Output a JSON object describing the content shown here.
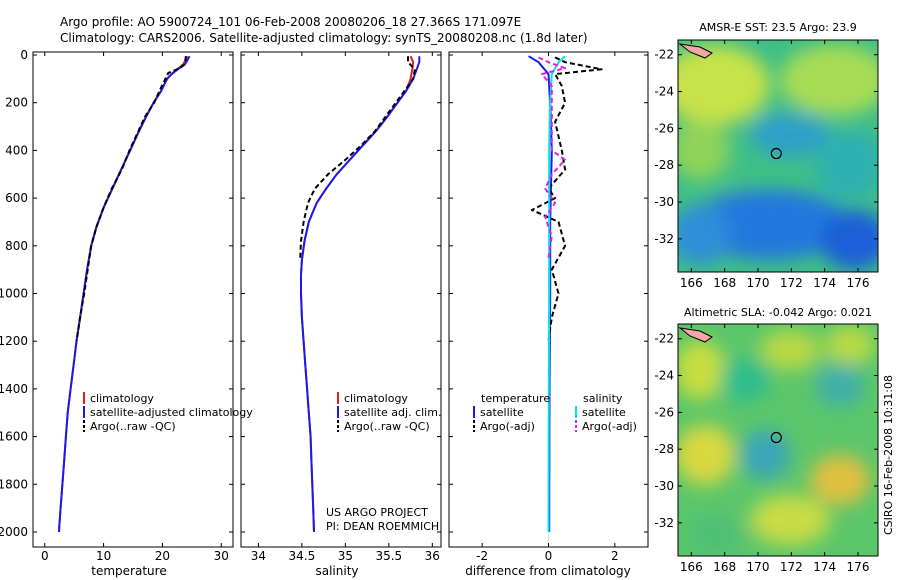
{
  "header": {
    "line1": "Argo profile: AO 5900724_101 06-Feb-2008 20080206_18 27.366S 171.097E",
    "line2": "Climatology: CARS2006. Satellite-adjusted climatology: synTS_20080208.nc (1.8d later)"
  },
  "footer": {
    "project": "US ARGO PROJECT",
    "pi": "PI: DEAN ROEMMICH",
    "stamp": "CSIRO 16-Feb-2008 10:31:08"
  },
  "chart_data": [
    {
      "type": "line",
      "name": "temperature",
      "xlabel": "temperature",
      "ylabel": "",
      "xlim": [
        -2,
        32
      ],
      "ylim": [
        2050,
        0
      ],
      "xticks": [
        0,
        10,
        20,
        30
      ],
      "yticks": [
        0,
        200,
        400,
        600,
        800,
        1000,
        1200,
        1400,
        1600,
        1800,
        2000
      ],
      "legend": [
        "climatology",
        "satellite-adjusted climatology",
        "Argo(..raw -QC)"
      ],
      "legend_placement": "lower-middle",
      "series": [
        {
          "name": "climatology",
          "color": "#e02020",
          "points": [
            [
              24.2,
              5
            ],
            [
              24.0,
              20
            ],
            [
              23.5,
              40
            ],
            [
              22.5,
              60
            ],
            [
              21.5,
              80
            ],
            [
              20.8,
              100
            ],
            [
              19.8,
              150
            ],
            [
              18.5,
              200
            ],
            [
              17.2,
              260
            ],
            [
              16.0,
              320
            ],
            [
              14.5,
              400
            ],
            [
              13.0,
              480
            ],
            [
              11.5,
              560
            ],
            [
              10.0,
              640
            ],
            [
              8.8,
              720
            ],
            [
              7.9,
              800
            ],
            [
              7.2,
              900
            ],
            [
              6.6,
              1000
            ],
            [
              6.0,
              1100
            ],
            [
              5.4,
              1200
            ],
            [
              4.9,
              1300
            ],
            [
              4.4,
              1400
            ],
            [
              3.9,
              1500
            ],
            [
              3.6,
              1600
            ],
            [
              3.3,
              1700
            ],
            [
              3.0,
              1800
            ],
            [
              2.7,
              1900
            ],
            [
              2.4,
              2000
            ]
          ]
        },
        {
          "name": "satellite-adjusted climatology",
          "color": "#1a1aee",
          "points": [
            [
              24.6,
              5
            ],
            [
              24.3,
              20
            ],
            [
              23.8,
              40
            ],
            [
              22.6,
              60
            ],
            [
              21.6,
              80
            ],
            [
              20.8,
              100
            ],
            [
              19.8,
              150
            ],
            [
              18.5,
              200
            ],
            [
              17.2,
              260
            ],
            [
              16.0,
              320
            ],
            [
              14.5,
              400
            ],
            [
              13.0,
              480
            ],
            [
              11.5,
              560
            ],
            [
              10.0,
              640
            ],
            [
              8.8,
              720
            ],
            [
              7.9,
              800
            ],
            [
              7.2,
              900
            ],
            [
              6.6,
              1000
            ],
            [
              6.0,
              1100
            ],
            [
              5.4,
              1200
            ],
            [
              4.9,
              1300
            ],
            [
              4.4,
              1400
            ],
            [
              3.9,
              1500
            ],
            [
              3.6,
              1600
            ],
            [
              3.3,
              1700
            ],
            [
              3.0,
              1800
            ],
            [
              2.7,
              1900
            ],
            [
              2.4,
              2000
            ]
          ]
        },
        {
          "name": "Argo(..raw -QC)",
          "color": "#000000",
          "dash": true,
          "points": [
            [
              24.0,
              5
            ],
            [
              23.9,
              20
            ],
            [
              23.7,
              40
            ],
            [
              23.0,
              55
            ],
            [
              21.0,
              75
            ],
            [
              20.5,
              100
            ],
            [
              19.5,
              150
            ],
            [
              18.6,
              200
            ],
            [
              17.0,
              260
            ],
            [
              15.9,
              320
            ],
            [
              14.4,
              400
            ],
            [
              13.1,
              480
            ],
            [
              11.4,
              560
            ],
            [
              10.0,
              640
            ],
            [
              8.8,
              720
            ],
            [
              7.9,
              800
            ],
            [
              7.3,
              900
            ],
            [
              6.7,
              1000
            ],
            [
              6.0,
              1100
            ],
            [
              5.4,
              1200
            ]
          ]
        }
      ]
    },
    {
      "type": "line",
      "name": "salinity",
      "xlabel": "salinity",
      "ylabel": "",
      "xlim": [
        33.8,
        36.1
      ],
      "ylim": [
        2050,
        0
      ],
      "xticks": [
        34,
        34.5,
        35,
        35.5,
        36
      ],
      "legend": [
        "climatology",
        "satellite adj. clim.",
        "Argo(..raw -QC)"
      ],
      "legend_placement": "lower-middle",
      "series": [
        {
          "name": "climatology",
          "color": "#e02020",
          "points": [
            [
              35.75,
              5
            ],
            [
              35.78,
              30
            ],
            [
              35.77,
              60
            ],
            [
              35.75,
              100
            ],
            [
              35.7,
              150
            ],
            [
              35.6,
              200
            ],
            [
              35.48,
              260
            ],
            [
              35.35,
              320
            ],
            [
              35.2,
              380
            ],
            [
              35.05,
              440
            ],
            [
              34.9,
              500
            ],
            [
              34.78,
              560
            ],
            [
              34.67,
              620
            ],
            [
              34.58,
              700
            ],
            [
              34.53,
              780
            ],
            [
              34.5,
              860
            ],
            [
              34.49,
              920
            ],
            [
              34.49,
              1000
            ],
            [
              34.5,
              1100
            ],
            [
              34.52,
              1200
            ],
            [
              34.54,
              1300
            ],
            [
              34.56,
              1400
            ],
            [
              34.58,
              1500
            ],
            [
              34.6,
              1600
            ],
            [
              34.61,
              1700
            ],
            [
              34.62,
              1800
            ],
            [
              34.63,
              1900
            ],
            [
              34.64,
              2000
            ]
          ]
        },
        {
          "name": "satellite adj. clim.",
          "color": "#1a1aee",
          "points": [
            [
              35.85,
              5
            ],
            [
              35.85,
              30
            ],
            [
              35.82,
              60
            ],
            [
              35.78,
              100
            ],
            [
              35.7,
              150
            ],
            [
              35.6,
              200
            ],
            [
              35.48,
              260
            ],
            [
              35.35,
              320
            ],
            [
              35.2,
              380
            ],
            [
              35.05,
              440
            ],
            [
              34.9,
              500
            ],
            [
              34.78,
              560
            ],
            [
              34.67,
              620
            ],
            [
              34.58,
              700
            ],
            [
              34.53,
              780
            ],
            [
              34.5,
              860
            ],
            [
              34.49,
              920
            ],
            [
              34.49,
              1000
            ],
            [
              34.5,
              1100
            ],
            [
              34.52,
              1200
            ],
            [
              34.54,
              1300
            ],
            [
              34.56,
              1400
            ],
            [
              34.58,
              1500
            ],
            [
              34.6,
              1600
            ],
            [
              34.61,
              1700
            ],
            [
              34.62,
              1800
            ],
            [
              34.63,
              1900
            ],
            [
              34.64,
              2000
            ]
          ]
        },
        {
          "name": "Argo(..raw -QC)",
          "color": "#000000",
          "dash": true,
          "points": [
            [
              35.72,
              5
            ],
            [
              35.72,
              30
            ],
            [
              35.8,
              60
            ],
            [
              35.78,
              100
            ],
            [
              35.68,
              150
            ],
            [
              35.58,
              200
            ],
            [
              35.46,
              260
            ],
            [
              35.34,
              320
            ],
            [
              35.18,
              380
            ],
            [
              35.0,
              440
            ],
            [
              34.8,
              500
            ],
            [
              34.65,
              560
            ],
            [
              34.57,
              620
            ],
            [
              34.52,
              700
            ],
            [
              34.49,
              780
            ],
            [
              34.48,
              860
            ]
          ]
        }
      ]
    },
    {
      "type": "line",
      "name": "difference",
      "xlabel": "difference from climatology",
      "ylabel": "",
      "xlim": [
        -3,
        3
      ],
      "ylim": [
        2050,
        0
      ],
      "xticks": [
        -2,
        0,
        2
      ],
      "legend": [
        "temperature",
        "satellite",
        "Argo(-adj)",
        "salinity",
        "satellite",
        "Argo(-adj)"
      ],
      "legend_placement": "lower-middle",
      "series": [
        {
          "name": "temperature satellite",
          "color": "#1a1aee",
          "points": [
            [
              -0.6,
              5
            ],
            [
              -0.3,
              30
            ],
            [
              0.0,
              80
            ],
            [
              0.05,
              200
            ],
            [
              0.1,
              400
            ],
            [
              0.05,
              700
            ],
            [
              0.05,
              1000
            ],
            [
              0.03,
              1400
            ],
            [
              0.02,
              2000
            ]
          ]
        },
        {
          "name": "temperature Argo(-adj)",
          "color": "#000000",
          "dash": true,
          "points": [
            [
              0.2,
              10
            ],
            [
              0.5,
              30
            ],
            [
              1.6,
              60
            ],
            [
              0.2,
              80
            ],
            [
              0.4,
              130
            ],
            [
              0.5,
              200
            ],
            [
              0.2,
              280
            ],
            [
              0.4,
              400
            ],
            [
              0.5,
              480
            ],
            [
              0.0,
              560
            ],
            [
              0.2,
              600
            ],
            [
              -0.5,
              650
            ],
            [
              0.3,
              700
            ],
            [
              0.5,
              800
            ],
            [
              0.1,
              900
            ],
            [
              0.3,
              1000
            ],
            [
              0.1,
              1100
            ],
            [
              0.0,
              1200
            ]
          ]
        },
        {
          "name": "salinity satellite",
          "color": "#00e5e5",
          "points": [
            [
              0.5,
              5
            ],
            [
              0.3,
              30
            ],
            [
              0.1,
              80
            ],
            [
              0.05,
              200
            ],
            [
              0.02,
              400
            ],
            [
              0.02,
              1000
            ],
            [
              0.01,
              1400
            ],
            [
              0.0,
              2000
            ]
          ]
        },
        {
          "name": "salinity Argo(-adj)",
          "color": "#e020e0",
          "dash": true,
          "points": [
            [
              -0.3,
              10
            ],
            [
              0.0,
              30
            ],
            [
              0.5,
              55
            ],
            [
              -0.2,
              80
            ],
            [
              0.1,
              130
            ],
            [
              0.1,
              200
            ],
            [
              0.1,
              300
            ],
            [
              0.1,
              400
            ],
            [
              0.5,
              440
            ],
            [
              0.1,
              500
            ],
            [
              -0.1,
              560
            ],
            [
              0.2,
              620
            ],
            [
              -0.1,
              680
            ],
            [
              0.1,
              760
            ],
            [
              0.0,
              850
            ]
          ]
        }
      ]
    },
    {
      "type": "heatmap",
      "name": "sst-map",
      "title": "AMSR-E SST: 23.5 Argo: 23.9",
      "xlim": [
        165.2,
        177.2
      ],
      "ylim": [
        -33.8,
        -21.2
      ],
      "xticks": [
        166,
        168,
        170,
        172,
        174,
        176
      ],
      "yticks": [
        -22,
        -24,
        -26,
        -28,
        -30,
        -32
      ],
      "float_position": [
        171.097,
        -27.366
      ]
    },
    {
      "type": "heatmap",
      "name": "sla-map",
      "title": "Altimetric SLA: -0.042 Argo: 0.021",
      "xlim": [
        165.2,
        177.2
      ],
      "ylim": [
        -33.8,
        -21.2
      ],
      "xticks": [
        166,
        168,
        170,
        172,
        174,
        176
      ],
      "yticks": [
        -22,
        -24,
        -26,
        -28,
        -30,
        -32
      ],
      "float_position": [
        171.097,
        -27.366
      ]
    }
  ]
}
